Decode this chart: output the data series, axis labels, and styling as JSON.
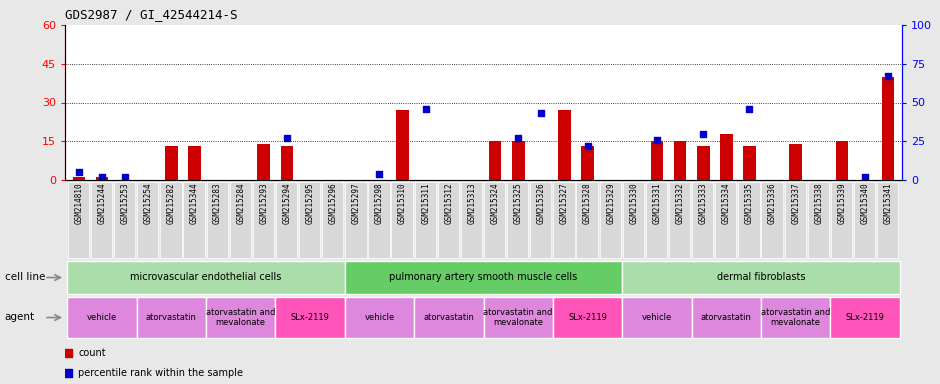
{
  "title": "GDS2987 / GI_42544214-S",
  "samples": [
    "GSM214810",
    "GSM215244",
    "GSM215253",
    "GSM215254",
    "GSM215282",
    "GSM215344",
    "GSM215283",
    "GSM215284",
    "GSM215293",
    "GSM215294",
    "GSM215295",
    "GSM215296",
    "GSM215297",
    "GSM215298",
    "GSM215310",
    "GSM215311",
    "GSM215312",
    "GSM215313",
    "GSM215324",
    "GSM215325",
    "GSM215326",
    "GSM215327",
    "GSM215328",
    "GSM215329",
    "GSM215330",
    "GSM215331",
    "GSM215332",
    "GSM215333",
    "GSM215334",
    "GSM215335",
    "GSM215336",
    "GSM215337",
    "GSM215338",
    "GSM215339",
    "GSM215340",
    "GSM215341"
  ],
  "red_values": [
    1,
    1,
    0,
    0,
    13,
    13,
    0,
    0,
    14,
    13,
    0,
    0,
    0,
    0,
    27,
    0,
    0,
    0,
    15,
    15,
    0,
    27,
    13,
    0,
    0,
    15,
    15,
    13,
    18,
    13,
    0,
    14,
    0,
    15,
    0,
    40
  ],
  "blue_values": [
    5,
    2,
    2,
    0,
    0,
    0,
    0,
    0,
    0,
    27,
    0,
    0,
    0,
    4,
    0,
    46,
    0,
    0,
    0,
    27,
    43,
    0,
    22,
    0,
    0,
    26,
    0,
    30,
    0,
    46,
    0,
    0,
    0,
    0,
    2,
    67
  ],
  "ylim_left": [
    0,
    60
  ],
  "ylim_right": [
    0,
    100
  ],
  "yticks_left": [
    0,
    15,
    30,
    45,
    60
  ],
  "yticks_right": [
    0,
    25,
    50,
    75,
    100
  ],
  "bar_color": "#CC0000",
  "dot_color": "#0000CC",
  "fig_bg": "#e8e8e8",
  "plot_bg": "#ffffff",
  "xticklabel_bg": "#d0d0d0",
  "cell_line_groups": [
    {
      "label": "microvascular endothelial cells",
      "start": 0,
      "end": 12,
      "color": "#aaddaa"
    },
    {
      "label": "pulmonary artery smooth muscle cells",
      "start": 12,
      "end": 24,
      "color": "#66cc66"
    },
    {
      "label": "dermal fibroblasts",
      "start": 24,
      "end": 36,
      "color": "#aaddaa"
    }
  ],
  "agent_groups": [
    {
      "label": "vehicle",
      "start": 0,
      "end": 3,
      "color": "#dd88dd"
    },
    {
      "label": "atorvastatin",
      "start": 3,
      "end": 6,
      "color": "#dd88dd"
    },
    {
      "label": "atorvastatin and\nmevalonate",
      "start": 6,
      "end": 9,
      "color": "#dd88dd"
    },
    {
      "label": "SLx-2119",
      "start": 9,
      "end": 12,
      "color": "#ff55bb"
    },
    {
      "label": "vehicle",
      "start": 12,
      "end": 15,
      "color": "#dd88dd"
    },
    {
      "label": "atorvastatin",
      "start": 15,
      "end": 18,
      "color": "#dd88dd"
    },
    {
      "label": "atorvastatin and\nmevalonate",
      "start": 18,
      "end": 21,
      "color": "#dd88dd"
    },
    {
      "label": "SLx-2119",
      "start": 21,
      "end": 24,
      "color": "#ff55bb"
    },
    {
      "label": "vehicle",
      "start": 24,
      "end": 27,
      "color": "#dd88dd"
    },
    {
      "label": "atorvastatin",
      "start": 27,
      "end": 30,
      "color": "#dd88dd"
    },
    {
      "label": "atorvastatin and\nmevalonate",
      "start": 30,
      "end": 33,
      "color": "#dd88dd"
    },
    {
      "label": "SLx-2119",
      "start": 33,
      "end": 36,
      "color": "#ff55bb"
    }
  ],
  "cell_line_label": "cell line",
  "agent_label": "agent",
  "legend_count": "count",
  "legend_pct": "percentile rank within the sample"
}
